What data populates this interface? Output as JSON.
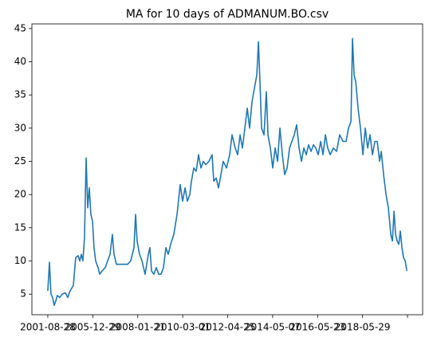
{
  "chart_data": {
    "type": "line",
    "title": "MA for 10 days of ADMANUM.BO.csv",
    "x": [
      0,
      18,
      35,
      53,
      71,
      89,
      106,
      133,
      160,
      195,
      222,
      248,
      284,
      310,
      337,
      355,
      373,
      390,
      408,
      426,
      444,
      461,
      479,
      497,
      514,
      532,
      559,
      577,
      603,
      639,
      665,
      692,
      718,
      736,
      763,
      798,
      843,
      887,
      922,
      958,
      976,
      993,
      1020,
      1047,
      1082,
      1118,
      1135,
      1153,
      1180,
      1206,
      1233,
      1260,
      1286,
      1313,
      1339,
      1366,
      1401,
      1437,
      1472,
      1499,
      1526,
      1552,
      1579,
      1597,
      1623,
      1650,
      1676,
      1703,
      1730,
      1756,
      1792,
      1827,
      1845,
      1872,
      1898,
      1925,
      1951,
      1987,
      2022,
      2049,
      2084,
      2111,
      2138,
      2164,
      2191,
      2218,
      2244,
      2271,
      2297,
      2324,
      2342,
      2359,
      2377,
      2404,
      2430,
      2448,
      2475,
      2501,
      2528,
      2555,
      2581,
      2608,
      2634,
      2661,
      2688,
      2714,
      2741,
      2767,
      2794,
      2821,
      2847,
      2874,
      2900,
      2927,
      2954,
      2980,
      3007,
      3034,
      3060,
      3087,
      3113,
      3140,
      3175,
      3211,
      3246,
      3282,
      3317,
      3344,
      3371,
      3388,
      3406,
      3424,
      3450,
      3477,
      3504,
      3530,
      3557,
      3583,
      3610,
      3637,
      3663,
      3690,
      3708,
      3734,
      3761,
      3787,
      3814,
      3832,
      3850,
      3867,
      3885,
      3903,
      3920,
      3938,
      3956,
      3974,
      3992
    ],
    "series": [
      {
        "name": "MA",
        "color": "#1f77b4",
        "values": [
          5.5,
          9.8,
          5,
          4.5,
          3.3,
          4,
          4.8,
          4.5,
          5,
          5.2,
          4.5,
          5.5,
          6.3,
          10.5,
          10.8,
          10,
          11,
          10,
          13.5,
          25.5,
          18,
          21,
          17,
          16,
          12,
          10,
          9,
          8,
          8.5,
          9,
          10,
          11,
          14,
          11,
          9.5,
          9.5,
          9.5,
          9.5,
          10,
          12,
          17,
          13,
          11,
          10,
          8,
          11,
          12,
          8.5,
          8,
          9,
          8,
          8,
          9,
          12,
          11,
          12.5,
          14,
          17,
          21.5,
          19,
          21,
          19,
          20,
          22,
          24,
          23.5,
          26,
          24,
          25,
          24.5,
          25,
          26,
          22,
          22.5,
          21,
          23,
          25,
          24,
          26,
          29,
          27,
          26,
          29,
          27,
          30,
          33,
          30,
          34,
          36,
          38,
          43,
          37,
          30,
          29,
          35.5,
          29,
          27,
          24,
          27,
          25,
          30,
          26,
          23,
          24,
          27,
          28,
          29,
          30.5,
          27,
          25,
          27,
          26,
          27.5,
          26.5,
          27.5,
          27,
          26,
          28,
          26,
          29,
          27,
          26,
          27,
          26.5,
          29,
          28,
          28,
          30,
          31,
          43.5,
          38,
          37,
          33,
          30,
          26,
          30,
          27,
          29,
          26,
          28,
          28,
          25,
          26.5,
          23,
          20,
          18,
          14,
          13,
          17.5,
          14,
          13,
          12.5,
          14.5,
          12,
          10.5,
          10,
          8.5
        ]
      }
    ],
    "xlim": [
      -177,
      4168
    ],
    "xticks": [
      {
        "value": 0,
        "label": "2001-08-28"
      },
      {
        "value": 500,
        "label": "2005-12-29"
      },
      {
        "value": 1000,
        "label": "2008-01-21"
      },
      {
        "value": 1500,
        "label": "2010-03-01"
      },
      {
        "value": 2000,
        "label": "2012-04-25"
      },
      {
        "value": 2500,
        "label": "2014-05-07"
      },
      {
        "value": 3000,
        "label": "2016-05-23"
      },
      {
        "value": 3500,
        "label": "2018-05-29"
      },
      {
        "value": 4000,
        "label": null
      }
    ],
    "ylim": [
      1.9,
      45.7
    ],
    "yticks": [
      5,
      10,
      15,
      20,
      25,
      30,
      35,
      40,
      45
    ],
    "grid": false
  }
}
